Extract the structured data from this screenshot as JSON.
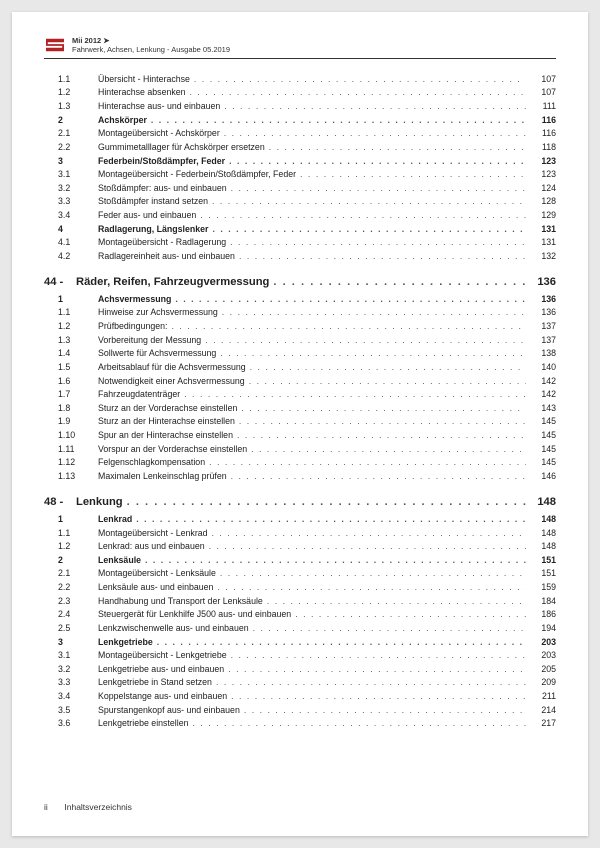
{
  "header": {
    "model": "Mii 2012 ➤",
    "subtitle": "Fahrwerk, Achsen, Lenkung - Ausgabe 05.2019",
    "logo_color": "#b22222"
  },
  "footer": {
    "page_roman": "ii",
    "label": "Inhaltsverzeichnis"
  },
  "toc": [
    {
      "type": "item",
      "num": "1.1",
      "title": "Übersicht - Hinterachse",
      "page": "107"
    },
    {
      "type": "item",
      "num": "1.2",
      "title": "Hinterachse absenken",
      "page": "107"
    },
    {
      "type": "item",
      "num": "1.3",
      "title": "Hinterachse aus- und einbauen",
      "page": "111"
    },
    {
      "type": "bold",
      "num": "2",
      "title": "Achskörper",
      "page": "116"
    },
    {
      "type": "item",
      "num": "2.1",
      "title": "Montageübersicht - Achskörper",
      "page": "116"
    },
    {
      "type": "item",
      "num": "2.2",
      "title": "Gummimetalllager für Achskörper ersetzen",
      "page": "118"
    },
    {
      "type": "bold",
      "num": "3",
      "title": "Federbein/Stoßdämpfer, Feder",
      "page": "123"
    },
    {
      "type": "item",
      "num": "3.1",
      "title": "Montageübersicht - Federbein/Stoßdämpfer, Feder",
      "page": "123"
    },
    {
      "type": "item",
      "num": "3.2",
      "title": "Stoßdämpfer: aus- und einbauen",
      "page": "124"
    },
    {
      "type": "item",
      "num": "3.3",
      "title": "Stoßdämpfer instand setzen",
      "page": "128"
    },
    {
      "type": "item",
      "num": "3.4",
      "title": "Feder aus- und einbauen",
      "page": "129"
    },
    {
      "type": "bold",
      "num": "4",
      "title": "Radlagerung, Längslenker",
      "page": "131"
    },
    {
      "type": "item",
      "num": "4.1",
      "title": "Montageübersicht - Radlagerung",
      "page": "131"
    },
    {
      "type": "item",
      "num": "4.2",
      "title": "Radlagereinheit aus- und einbauen",
      "page": "132"
    },
    {
      "type": "section",
      "num": "44 -",
      "title": "Räder, Reifen, Fahrzeugvermessung",
      "page": "136"
    },
    {
      "type": "bold",
      "num": "1",
      "title": "Achsvermessung",
      "page": "136"
    },
    {
      "type": "item",
      "num": "1.1",
      "title": "Hinweise zur Achsvermessung",
      "page": "136"
    },
    {
      "type": "item",
      "num": "1.2",
      "title": "Prüfbedingungen:",
      "page": "137"
    },
    {
      "type": "item",
      "num": "1.3",
      "title": "Vorbereitung der Messung",
      "page": "137"
    },
    {
      "type": "item",
      "num": "1.4",
      "title": "Sollwerte für Achsvermessung",
      "page": "138"
    },
    {
      "type": "item",
      "num": "1.5",
      "title": "Arbeitsablauf für die Achsvermessung",
      "page": "140"
    },
    {
      "type": "item",
      "num": "1.6",
      "title": "Notwendigkeit einer Achsvermessung",
      "page": "142"
    },
    {
      "type": "item",
      "num": "1.7",
      "title": "Fahrzeugdatenträger",
      "page": "142"
    },
    {
      "type": "item",
      "num": "1.8",
      "title": "Sturz an der Vorderachse einstellen",
      "page": "143"
    },
    {
      "type": "item",
      "num": "1.9",
      "title": "Sturz an der Hinterachse einstellen",
      "page": "145"
    },
    {
      "type": "item",
      "num": "1.10",
      "title": "Spur an der Hinterachse einstellen",
      "page": "145"
    },
    {
      "type": "item",
      "num": "1.11",
      "title": "Vorspur an der Vorderachse einstellen",
      "page": "145"
    },
    {
      "type": "item",
      "num": "1.12",
      "title": "Felgenschlagkompensation",
      "page": "145"
    },
    {
      "type": "item",
      "num": "1.13",
      "title": "Maximalen Lenkeinschlag prüfen",
      "page": "146"
    },
    {
      "type": "section",
      "num": "48 -",
      "title": "Lenkung",
      "page": "148"
    },
    {
      "type": "bold",
      "num": "1",
      "title": "Lenkrad",
      "page": "148"
    },
    {
      "type": "item",
      "num": "1.1",
      "title": "Montageübersicht - Lenkrad",
      "page": "148"
    },
    {
      "type": "item",
      "num": "1.2",
      "title": "Lenkrad: aus und einbauen",
      "page": "148"
    },
    {
      "type": "bold",
      "num": "2",
      "title": "Lenksäule",
      "page": "151"
    },
    {
      "type": "item",
      "num": "2.1",
      "title": "Montageübersicht - Lenksäule",
      "page": "151"
    },
    {
      "type": "item",
      "num": "2.2",
      "title": "Lenksäule aus- und einbauen",
      "page": "159"
    },
    {
      "type": "item",
      "num": "2.3",
      "title": "Handhabung und Transport der Lenksäule",
      "page": "184"
    },
    {
      "type": "item",
      "num": "2.4",
      "title": "Steuergerät für Lenkhilfe J500 aus- und einbauen",
      "page": "186"
    },
    {
      "type": "item",
      "num": "2.5",
      "title": "Lenkzwischenwelle aus- und einbauen",
      "page": "194"
    },
    {
      "type": "bold",
      "num": "3",
      "title": "Lenkgetriebe",
      "page": "203"
    },
    {
      "type": "item",
      "num": "3.1",
      "title": "Montageübersicht - Lenkgetriebe",
      "page": "203"
    },
    {
      "type": "item",
      "num": "3.2",
      "title": "Lenkgetriebe aus- und einbauen",
      "page": "205"
    },
    {
      "type": "item",
      "num": "3.3",
      "title": "Lenkgetriebe in Stand setzen",
      "page": "209"
    },
    {
      "type": "item",
      "num": "3.4",
      "title": "Koppelstange aus- und einbauen",
      "page": "211"
    },
    {
      "type": "item",
      "num": "3.5",
      "title": "Spurstangenkopf aus- und einbauen",
      "page": "214"
    },
    {
      "type": "item",
      "num": "3.6",
      "title": "Lenkgetriebe einstellen",
      "page": "217"
    }
  ]
}
